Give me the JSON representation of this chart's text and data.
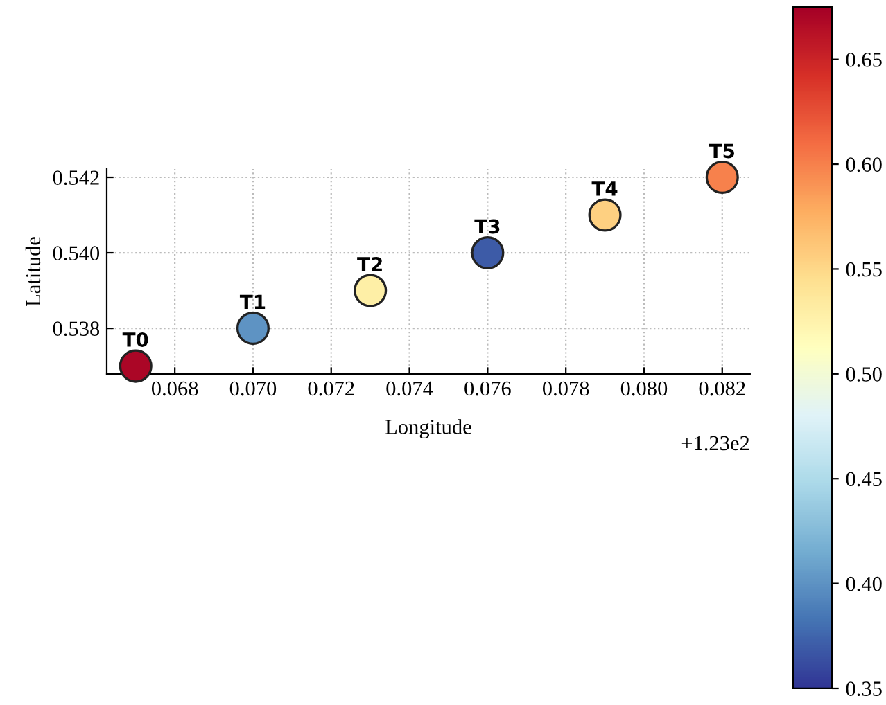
{
  "chart_data": {
    "type": "scatter",
    "xlabel": "Longitude",
    "ylabel": "Latitude",
    "x": [
      0.067,
      0.07,
      0.073,
      0.076,
      0.079,
      0.082
    ],
    "series": [
      {
        "values": [
          0.537,
          0.538,
          0.539,
          0.54,
          0.541,
          0.542
        ],
        "cvalues": [
          0.67,
          0.4,
          0.53,
          0.37,
          0.555,
          0.6
        ],
        "value_labels": [
          "T0",
          "T1",
          "T2",
          "T3",
          "T4",
          "T5"
        ]
      }
    ],
    "xlim": [
      0.06626,
      0.08271
    ],
    "ylim": [
      0.53679,
      0.54222
    ],
    "xticks": [
      0.068,
      {
        "value": 0.07,
        "label": "0.070"
      },
      0.072,
      0.074,
      0.076,
      0.078,
      {
        "value": 0.08,
        "label": "0.080"
      },
      0.082
    ],
    "yticks": [
      {
        "value": 0.538,
        "label": "0.538"
      },
      {
        "value": 0.54,
        "label": "0.540"
      },
      {
        "value": 0.542,
        "label": "0.542"
      }
    ],
    "clim": [
      0.35,
      0.675
    ],
    "cticks": [
      0.35,
      {
        "value": 0.4,
        "label": "0.40"
      },
      0.45,
      {
        "value": 0.5,
        "label": "0.50"
      },
      0.55,
      {
        "value": 0.6,
        "label": "0.60"
      },
      0.65
    ],
    "annotations": [
      "+1.23e2"
    ],
    "grid": true,
    "marker": "circle",
    "legend": false
  }
}
